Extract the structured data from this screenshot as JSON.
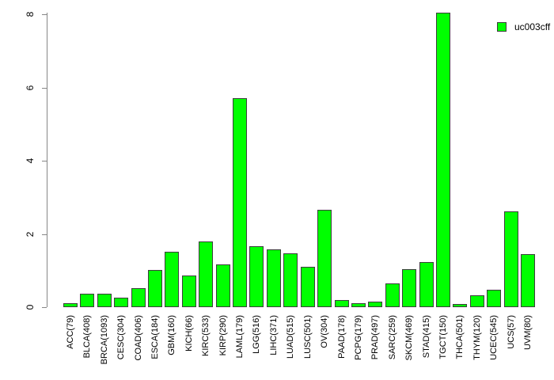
{
  "chart_data": {
    "type": "bar",
    "title": "",
    "xlabel": "",
    "ylabel": "",
    "ylim": [
      0,
      8
    ],
    "yticks": [
      0,
      2,
      4,
      6,
      8
    ],
    "grid": false,
    "legend": {
      "label": "uc003cff",
      "position": "top-right"
    },
    "bar_color": "#00FF00",
    "bar_border_color": "#3D3D3D",
    "axis_color": "#878787",
    "categories": [
      "ACC(79)",
      "BLCA(408)",
      "BRCA(1093)",
      "CESC(304)",
      "COAD(406)",
      "ESCA(184)",
      "GBM(160)",
      "KICH(66)",
      "KIRC(533)",
      "KIRP(290)",
      "LAML(179)",
      "LGG(516)",
      "LIHC(371)",
      "LUAD(515)",
      "LUSC(501)",
      "OV(304)",
      "PAAD(178)",
      "PCPG(179)",
      "PRAD(497)",
      "SARC(259)",
      "SKCM(469)",
      "STAD(415)",
      "TGCT(150)",
      "THCA(501)",
      "THYM(120)",
      "UCEC(545)",
      "UCS(57)",
      "UVM(80)"
    ],
    "values": [
      0.11,
      0.37,
      0.37,
      0.26,
      0.53,
      1.02,
      1.51,
      0.86,
      1.8,
      1.16,
      5.71,
      1.66,
      1.57,
      1.47,
      1.1,
      2.67,
      0.2,
      0.1,
      0.15,
      0.64,
      1.03,
      1.23,
      8.05,
      0.08,
      0.33,
      0.48,
      2.62,
      1.45
    ]
  }
}
